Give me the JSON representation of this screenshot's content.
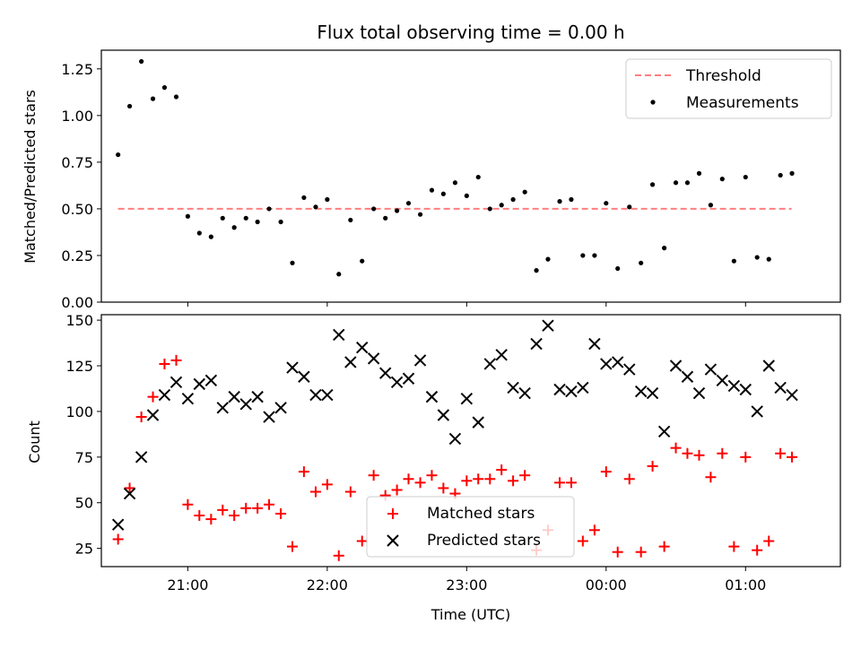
{
  "chart_data": {
    "type": "scatter",
    "title": "Flux total observing time = 0.00 h",
    "xlabel": "Time (UTC)",
    "x_range_hours": [
      20.38,
      25.68
    ],
    "x_ticks": [
      {
        "hour": 21,
        "label": "21:00"
      },
      {
        "hour": 22,
        "label": "22:00"
      },
      {
        "hour": 23,
        "label": "23:00"
      },
      {
        "hour": 24,
        "label": "00:00"
      },
      {
        "hour": 25,
        "label": "01:00"
      }
    ],
    "top_panel": {
      "ylabel": "Matched/Predicted stars",
      "ylim": [
        0.0,
        1.35
      ],
      "y_ticks": [
        "0.00",
        "0.25",
        "0.50",
        "0.75",
        "1.00",
        "1.25"
      ],
      "legend_position": "upper-right",
      "threshold": {
        "name": "Threshold",
        "value": 0.5,
        "x_range": [
          20.5,
          25.33
        ],
        "color": "#ff7f7f"
      },
      "measurements": {
        "name": "Measurements",
        "color": "#000000",
        "x": [
          20.5,
          20.583,
          20.667,
          20.75,
          20.833,
          20.917,
          21.0,
          21.083,
          21.167,
          21.25,
          21.333,
          21.417,
          21.5,
          21.583,
          21.667,
          21.75,
          21.833,
          21.917,
          22.0,
          22.083,
          22.167,
          22.25,
          22.333,
          22.417,
          22.5,
          22.583,
          22.667,
          22.75,
          22.833,
          22.917,
          23.0,
          23.083,
          23.167,
          23.25,
          23.333,
          23.417,
          23.5,
          23.583,
          23.667,
          23.75,
          23.833,
          23.917,
          24.0,
          24.083,
          24.167,
          24.25,
          24.333,
          24.417,
          24.5,
          24.583,
          24.667,
          24.75,
          24.833,
          24.917,
          25.0,
          25.083,
          25.167,
          25.25,
          25.333
        ],
        "y": [
          0.79,
          1.05,
          1.29,
          1.09,
          1.15,
          1.1,
          0.46,
          0.37,
          0.35,
          0.45,
          0.4,
          0.45,
          0.43,
          0.5,
          0.43,
          0.21,
          0.56,
          0.51,
          0.55,
          0.15,
          0.44,
          0.22,
          0.5,
          0.45,
          0.49,
          0.53,
          0.47,
          0.6,
          0.58,
          0.64,
          0.57,
          0.67,
          0.5,
          0.52,
          0.55,
          0.59,
          0.17,
          0.23,
          0.54,
          0.55,
          0.25,
          0.25,
          0.53,
          0.18,
          0.51,
          0.21,
          0.63,
          0.29,
          0.64,
          0.64,
          0.69,
          0.52,
          0.66,
          0.22,
          0.67,
          0.24,
          0.23,
          0.68,
          0.69
        ]
      }
    },
    "bottom_panel": {
      "ylabel": "Count",
      "ylim": [
        15,
        153
      ],
      "y_ticks": [
        "25",
        "50",
        "75",
        "100",
        "125",
        "150"
      ],
      "legend_position": "lower-center",
      "series": [
        {
          "name": "Matched stars",
          "marker": "plus",
          "color": "#ff0000",
          "x": [
            20.5,
            20.583,
            20.667,
            20.75,
            20.833,
            20.917,
            21.0,
            21.083,
            21.167,
            21.25,
            21.333,
            21.417,
            21.5,
            21.583,
            21.667,
            21.75,
            21.833,
            21.917,
            22.0,
            22.083,
            22.167,
            22.25,
            22.333,
            22.417,
            22.5,
            22.583,
            22.667,
            22.75,
            22.833,
            22.917,
            23.0,
            23.083,
            23.167,
            23.25,
            23.333,
            23.417,
            23.5,
            23.583,
            23.667,
            23.75,
            23.833,
            23.917,
            24.0,
            24.083,
            24.167,
            24.25,
            24.333,
            24.417,
            24.5,
            24.583,
            24.667,
            24.75,
            24.833,
            24.917,
            25.0,
            25.083,
            25.167,
            25.25,
            25.333
          ],
          "y": [
            30,
            58,
            97,
            108,
            126,
            128,
            49,
            43,
            41,
            46,
            43,
            47,
            47,
            49,
            44,
            26,
            67,
            56,
            60,
            21,
            56,
            29,
            65,
            54,
            57,
            63,
            61,
            65,
            58,
            55,
            62,
            63,
            63,
            68,
            62,
            65,
            24,
            35,
            61,
            61,
            29,
            35,
            67,
            23,
            63,
            23,
            70,
            26,
            80,
            77,
            76,
            64,
            77,
            26,
            75,
            24,
            29,
            77,
            75
          ]
        },
        {
          "name": "Predicted stars",
          "marker": "x",
          "color": "#000000",
          "x": [
            20.5,
            20.583,
            20.667,
            20.75,
            20.833,
            20.917,
            21.0,
            21.083,
            21.167,
            21.25,
            21.333,
            21.417,
            21.5,
            21.583,
            21.667,
            21.75,
            21.833,
            21.917,
            22.0,
            22.083,
            22.167,
            22.25,
            22.333,
            22.417,
            22.5,
            22.583,
            22.667,
            22.75,
            22.833,
            22.917,
            23.0,
            23.083,
            23.167,
            23.25,
            23.333,
            23.417,
            23.5,
            23.583,
            23.667,
            23.75,
            23.833,
            23.917,
            24.0,
            24.083,
            24.167,
            24.25,
            24.333,
            24.417,
            24.5,
            24.583,
            24.667,
            24.75,
            24.833,
            24.917,
            25.0,
            25.083,
            25.167,
            25.25,
            25.333
          ],
          "y": [
            38,
            55,
            75,
            98,
            109,
            116,
            107,
            115,
            117,
            102,
            108,
            104,
            108,
            97,
            102,
            124,
            119,
            109,
            109,
            142,
            127,
            135,
            129,
            121,
            116,
            118,
            128,
            108,
            98,
            85,
            107,
            94,
            126,
            131,
            113,
            110,
            137,
            147,
            112,
            111,
            113,
            137,
            126,
            127,
            123,
            111,
            110,
            89,
            125,
            119,
            110,
            123,
            117,
            114,
            112,
            100,
            125,
            113,
            109
          ]
        }
      ]
    }
  }
}
